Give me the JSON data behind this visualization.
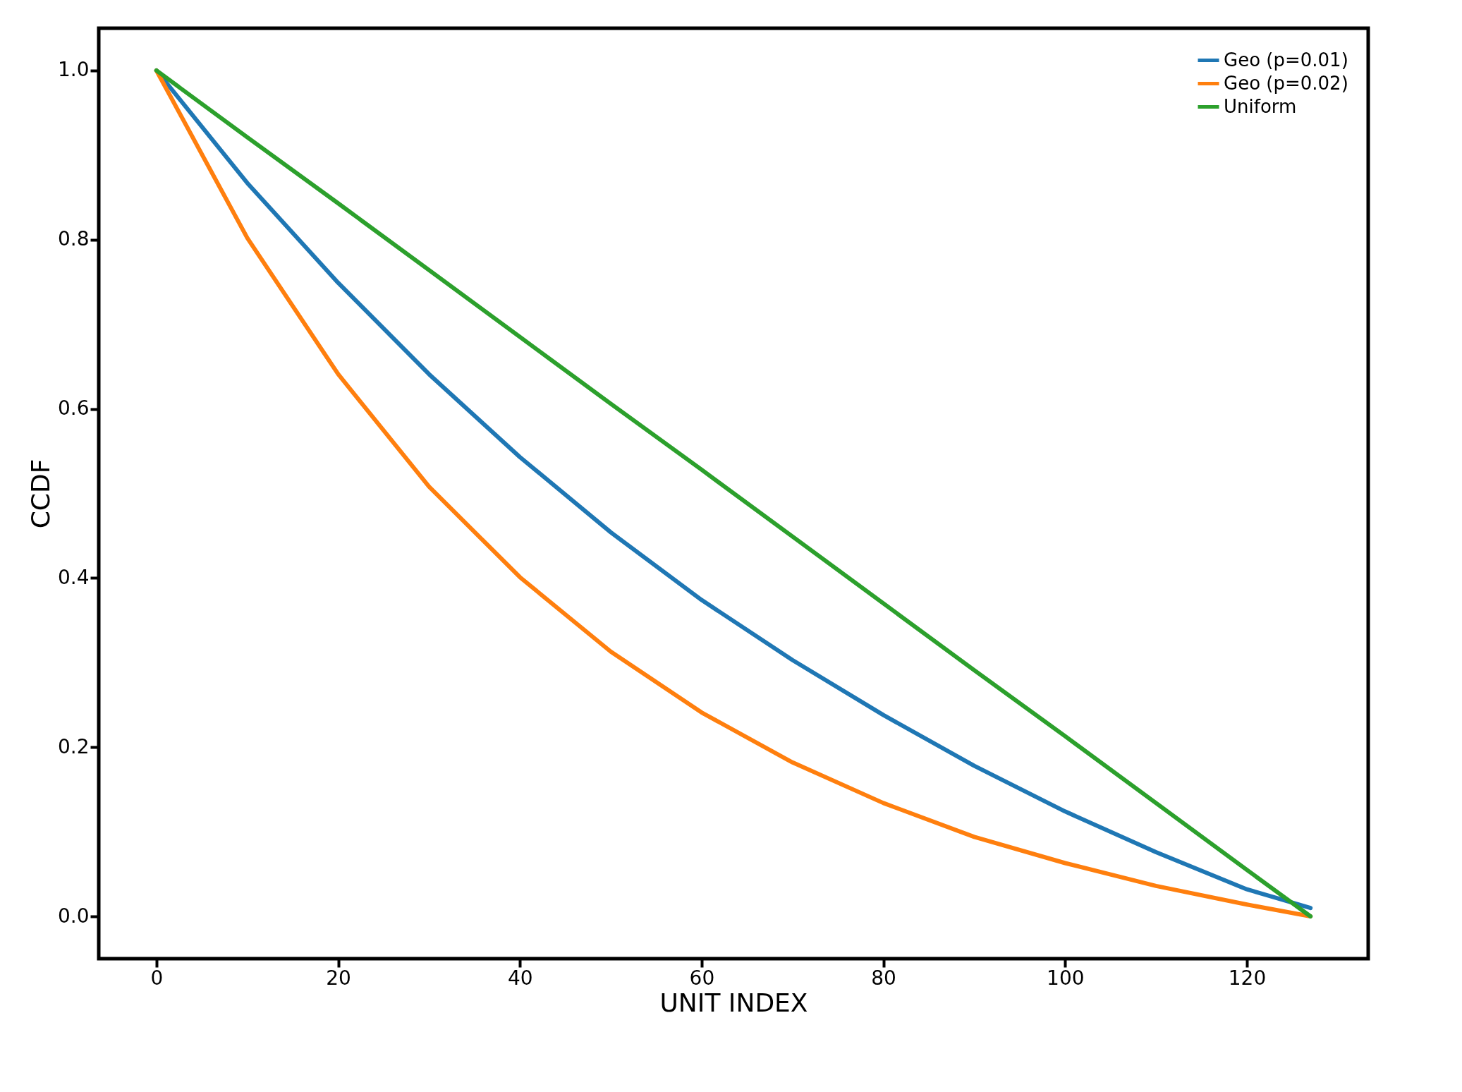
{
  "chart_data": {
    "type": "line",
    "xlabel": "UNIT INDEX",
    "ylabel": "CCDF",
    "x": [
      0,
      10,
      20,
      30,
      40,
      50,
      60,
      70,
      80,
      90,
      100,
      110,
      120,
      127
    ],
    "series": [
      {
        "name": "Geo (p=0.01)",
        "color": "#1f77b4",
        "values": [
          1,
          0.867,
          0.749,
          0.641,
          0.543,
          0.454,
          0.374,
          0.303,
          0.238,
          0.178,
          0.124,
          0.076,
          0.032,
          0.01
        ]
      },
      {
        "name": "Geo (p=0.02)",
        "color": "#ff7f0e",
        "values": [
          1,
          0.802,
          0.641,
          0.508,
          0.401,
          0.313,
          0.241,
          0.182,
          0.134,
          0.094,
          0.063,
          0.036,
          0.014,
          0
        ]
      },
      {
        "name": "Uniform",
        "color": "#2ca02c",
        "values": [
          1,
          0.921,
          0.843,
          0.764,
          0.685,
          0.606,
          0.528,
          0.449,
          0.37,
          0.291,
          0.213,
          0.134,
          0.055,
          0
        ]
      }
    ],
    "xlim": [
      -6.35,
      133.35
    ],
    "ylim": [
      -0.05,
      1.05
    ],
    "xticks": [
      0,
      20,
      40,
      60,
      80,
      100,
      120
    ],
    "yticks": [
      {
        "value": 0,
        "label": "0.0"
      },
      {
        "value": 0.2,
        "label": "0.2"
      },
      {
        "value": 0.4,
        "label": "0.4"
      },
      {
        "value": 0.6,
        "label": "0.6"
      },
      {
        "value": 0.8,
        "label": "0.8"
      },
      {
        "value": 1,
        "label": "1.0"
      }
    ],
    "legend": "top right",
    "grid": false,
    "marker": "none",
    "line_style": "solid"
  }
}
